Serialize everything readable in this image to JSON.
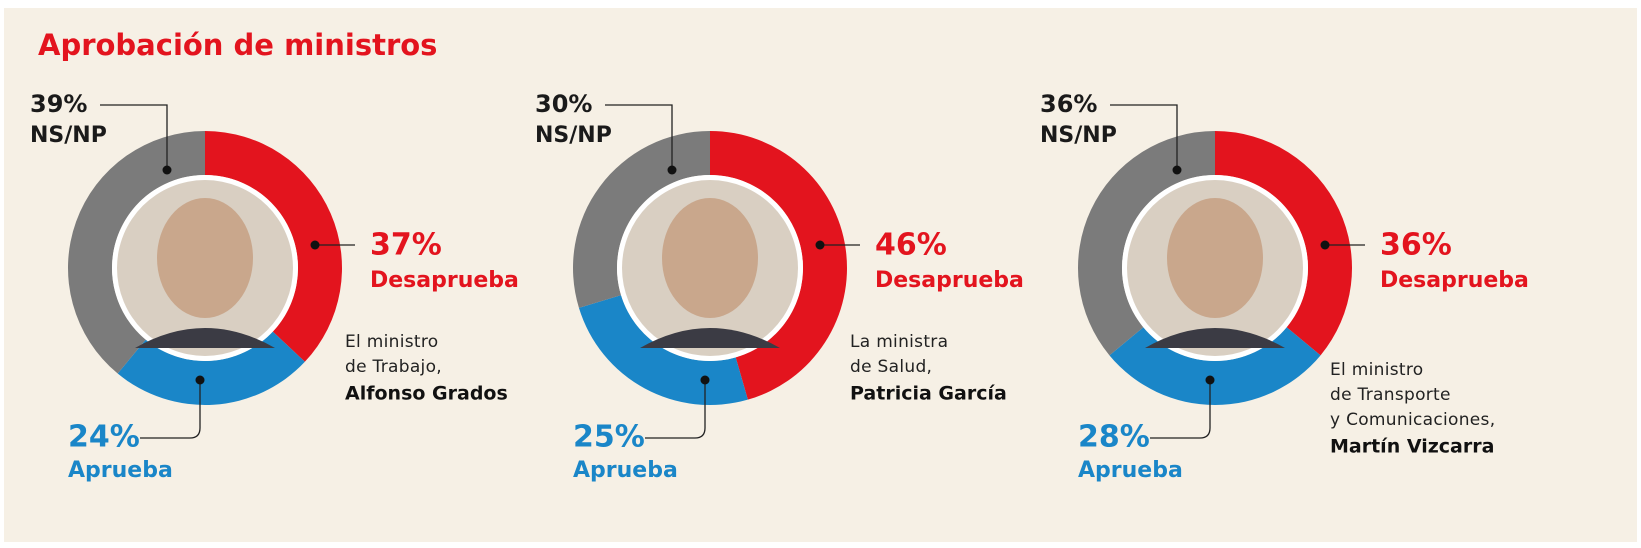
{
  "title": "Aprobación de ministros",
  "chart_data": [
    {
      "type": "pie",
      "categories": [
        "Desaprueba",
        "Aprueba",
        "NS/NP"
      ],
      "values": [
        37,
        24,
        39
      ],
      "value_labels": [
        "37%",
        "24%",
        "39%"
      ],
      "colors": [
        "#e3141e",
        "#1a86c8",
        "#7b7b7b"
      ],
      "caption": [
        "El ministro",
        "de Trabajo,"
      ],
      "name": "Alfonso Grados"
    },
    {
      "type": "pie",
      "categories": [
        "Desaprueba",
        "Aprueba",
        "NS/NP"
      ],
      "values": [
        46,
        25,
        30
      ],
      "value_labels": [
        "46%",
        "25%",
        "30%"
      ],
      "colors": [
        "#e3141e",
        "#1a86c8",
        "#7b7b7b"
      ],
      "caption": [
        "La ministra",
        "de Salud,"
      ],
      "name": "Patricia García"
    },
    {
      "type": "pie",
      "categories": [
        "Desaprueba",
        "Aprueba",
        "NS/NP"
      ],
      "values": [
        36,
        28,
        36
      ],
      "value_labels": [
        "36%",
        "28%",
        "36%"
      ],
      "colors": [
        "#e3141e",
        "#1a86c8",
        "#7b7b7b"
      ],
      "caption": [
        "El ministro",
        "de Transporte",
        "y Comunicaciones,"
      ],
      "name": "Martín Vizcarra"
    }
  ]
}
